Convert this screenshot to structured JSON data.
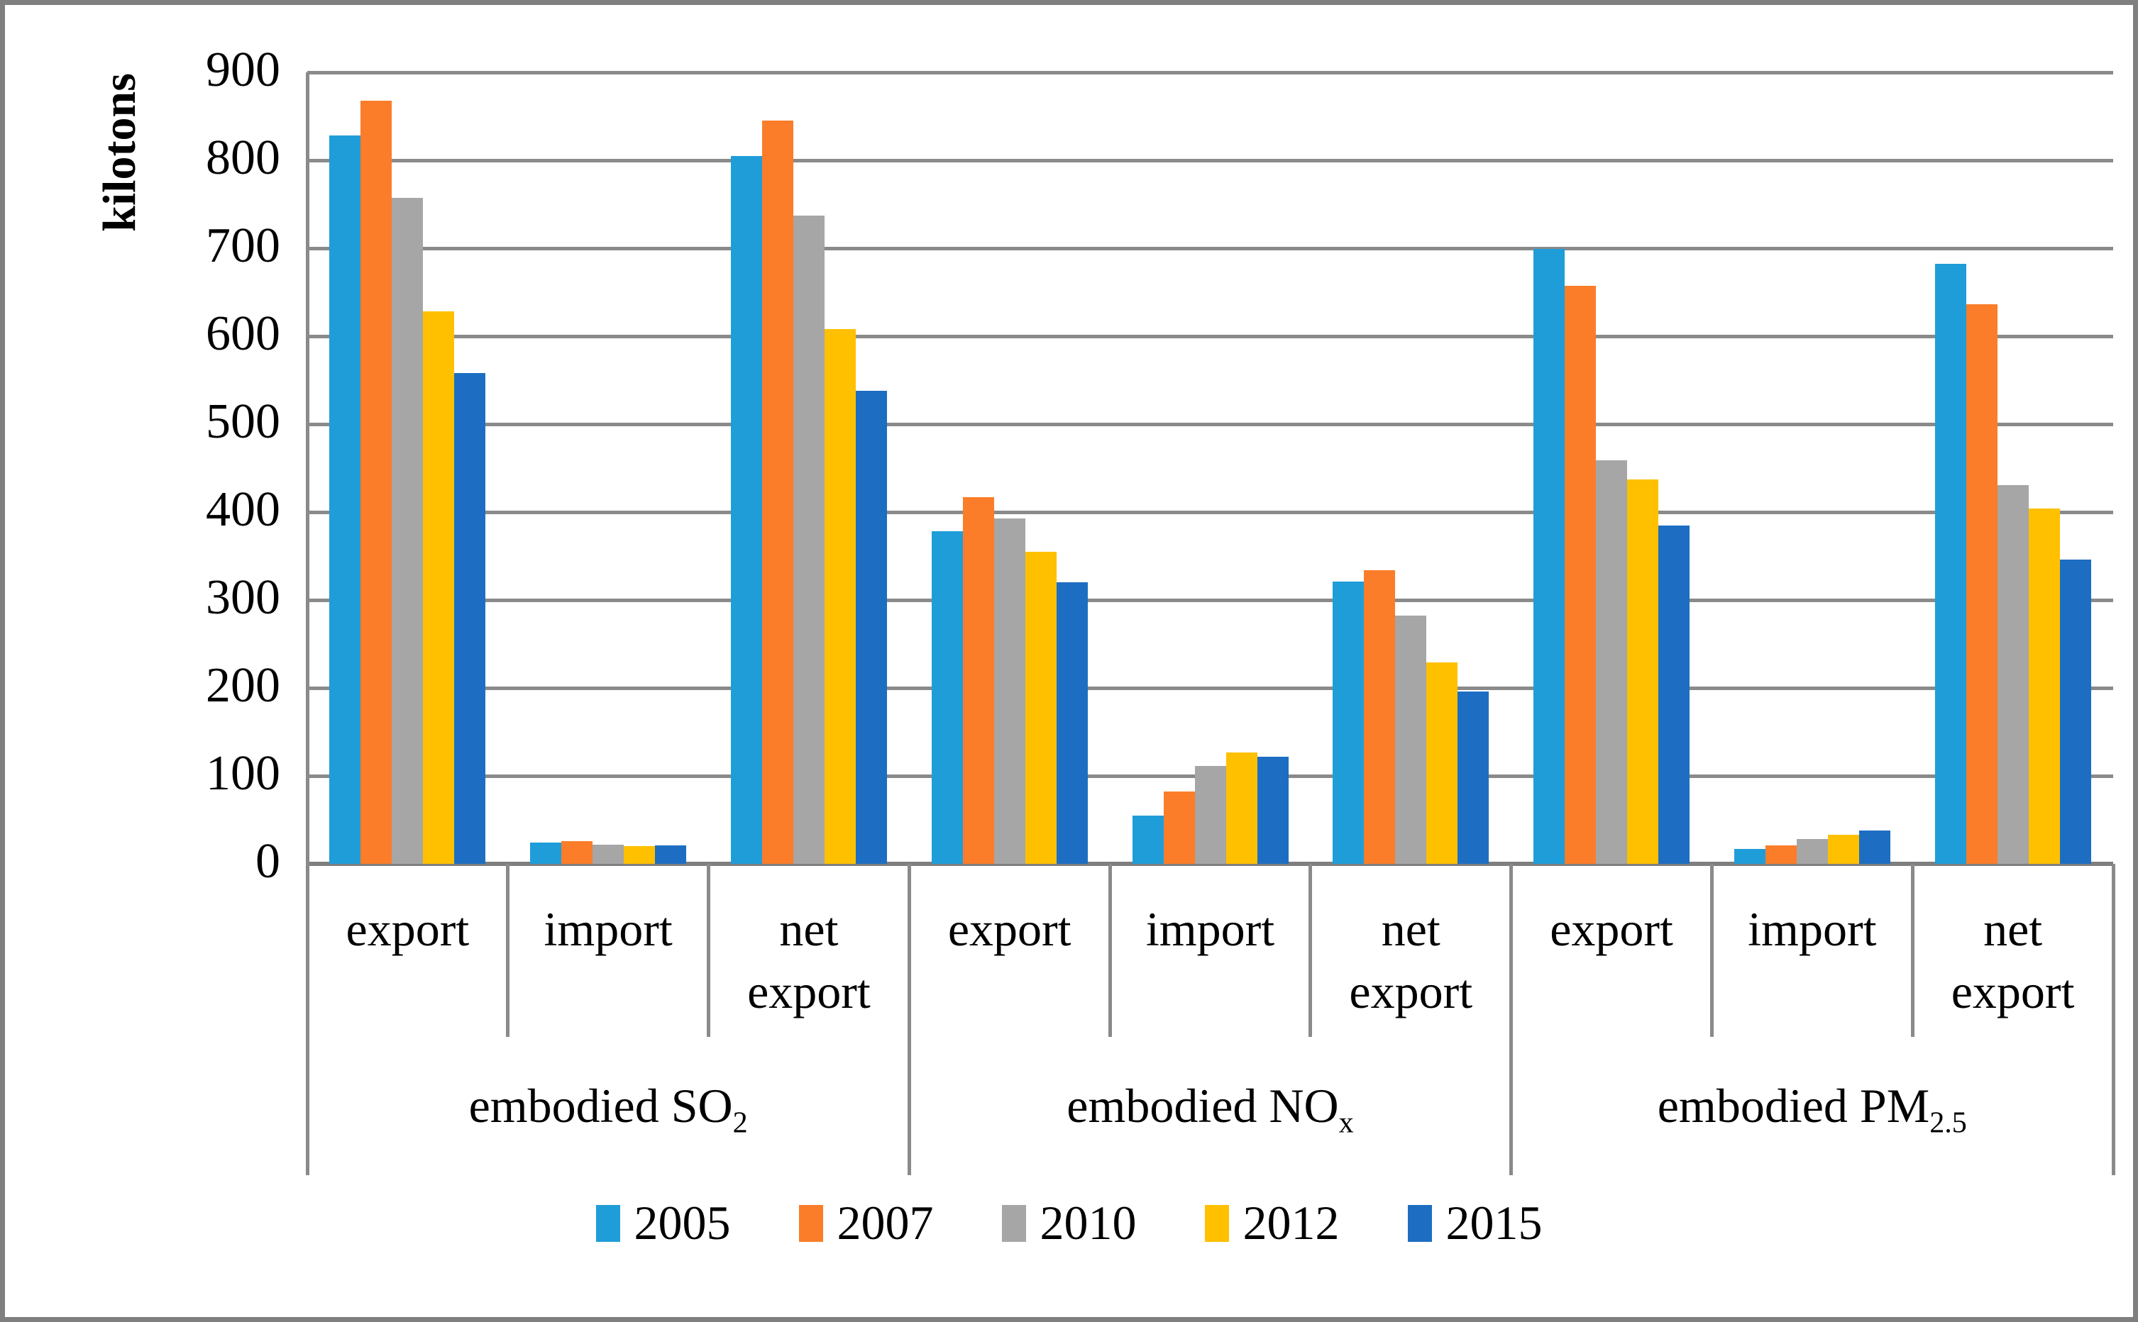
{
  "chart_data": {
    "type": "bar",
    "title": "",
    "ylabel": "kilotons",
    "ylim": [
      0,
      900
    ],
    "ytick_interval": 100,
    "yticks": [
      "0",
      "100",
      "200",
      "300",
      "400",
      "500",
      "600",
      "700",
      "800",
      "900"
    ],
    "grid": true,
    "legend_position": "bottom",
    "grid_color": "#8A8A8A",
    "axis_color": "#7F7F7F",
    "figure_border_color": "#7F7F7F",
    "subgroups": [
      "export",
      "import",
      "net export"
    ],
    "categories": [
      {
        "base": "embodied SO",
        "sub": "2"
      },
      {
        "base": "embodied NO",
        "sub": "x"
      },
      {
        "base": "embodied PM",
        "sub": "2.5"
      }
    ],
    "column_order_note": "values are per cluster: [SO2 export, SO2 import, SO2 net export, NOx export, NOx import, NOx net export, PM2.5 export, PM2.5 import, PM2.5 net export]",
    "series": [
      {
        "name": "2005",
        "color": "#1F9DD9",
        "values": [
          828,
          24,
          805,
          378,
          55,
          321,
          699,
          17,
          682
        ]
      },
      {
        "name": "2007",
        "color": "#FB7D29",
        "values": [
          868,
          26,
          845,
          417,
          82,
          334,
          657,
          21,
          636
        ]
      },
      {
        "name": "2010",
        "color": "#A6A6A6",
        "values": [
          757,
          22,
          737,
          393,
          111,
          282,
          459,
          28,
          431
        ]
      },
      {
        "name": "2012",
        "color": "#FFC000",
        "values": [
          628,
          20,
          608,
          355,
          127,
          229,
          437,
          33,
          404
        ]
      },
      {
        "name": "2015",
        "color": "#1D6EC2",
        "values": [
          558,
          21,
          538,
          320,
          122,
          196,
          385,
          38,
          346
        ]
      }
    ]
  }
}
